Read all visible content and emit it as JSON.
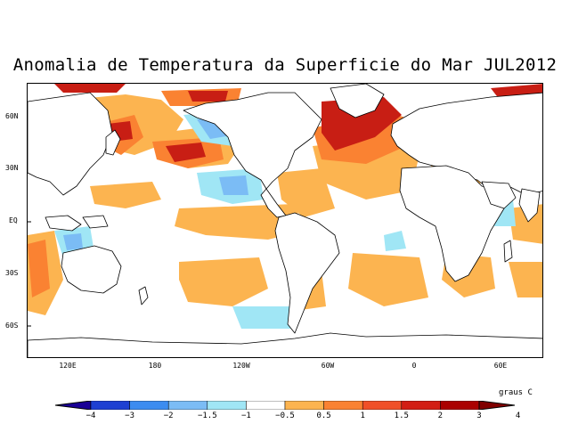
{
  "title": "Anomalia de Temperatura da Superficie do Mar JUL2012",
  "map": {
    "lat_labels": [
      "60N",
      "30N",
      "EQ",
      "30S",
      "60S"
    ],
    "lon_labels": [
      "120E",
      "180",
      "120W",
      "60W",
      "0",
      "60E"
    ],
    "colors": {
      "coast": "#000000",
      "land": "#ffffff"
    }
  },
  "colorbar": {
    "unit_label": "graus C",
    "tick_labels": [
      "−4",
      "−3",
      "−2",
      "−1.5",
      "−1",
      "−0.5",
      "0.5",
      "1",
      "1.5",
      "2",
      "3",
      "4"
    ],
    "colors": [
      "#1a0096",
      "#1e40d2",
      "#3c8cf0",
      "#7bbcf5",
      "#a0e6f5",
      "#ffffff",
      "#fcb450",
      "#fa8232",
      "#f05028",
      "#d21e14",
      "#aa0000",
      "#800000"
    ]
  }
}
